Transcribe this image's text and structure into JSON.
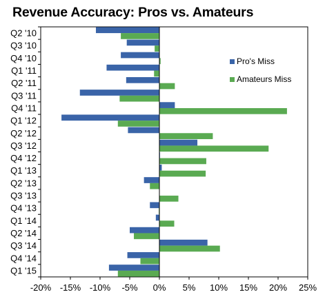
{
  "chart_data": {
    "type": "bar",
    "orientation": "horizontal",
    "title": "Revenue Accuracy: Pros vs. Amateurs",
    "xlabel": "",
    "ylabel": "",
    "xlim": [
      -20,
      25
    ],
    "x_ticks": [
      -20,
      -15,
      -10,
      -5,
      0,
      5,
      10,
      15,
      20,
      25
    ],
    "x_tick_labels": [
      "-20%",
      "-15%",
      "-10%",
      "-5%",
      "0%",
      "5%",
      "10%",
      "15%",
      "20%",
      "25%"
    ],
    "grid": false,
    "legend_position": "right",
    "categories": [
      "Q2 '10",
      "Q3 '10",
      "Q4 '10",
      "Q1 '11",
      "Q2 '11",
      "Q3 '11",
      "Q4 '11",
      "Q1 '12",
      "Q2 '12",
      "Q3 '12",
      "Q4 '12",
      "Q1 '13",
      "Q2 '13",
      "Q3 '13",
      "Q4 '13",
      "Q1 '14",
      "Q2 '14",
      "Q3 '14",
      "Q4 '14",
      "Q1 '15"
    ],
    "series": [
      {
        "name": "Pro's Miss",
        "color": "#3a64a8",
        "values": [
          -10.7,
          -5.5,
          -6.5,
          -8.9,
          -5.6,
          -13.4,
          2.6,
          -16.5,
          -5.3,
          6.4,
          0.1,
          0.4,
          -2.6,
          0.0,
          -1.6,
          -0.6,
          -5.0,
          8.1,
          -5.4,
          -8.5
        ]
      },
      {
        "name": "Amateurs Miss",
        "color": "#5aaa52",
        "values": [
          -6.5,
          -0.8,
          0.2,
          -0.9,
          2.6,
          -6.7,
          21.5,
          -7.0,
          9.0,
          18.4,
          7.9,
          7.8,
          -1.6,
          3.2,
          -0.1,
          2.5,
          -4.3,
          10.2,
          -3.2,
          -7.0
        ]
      }
    ]
  }
}
